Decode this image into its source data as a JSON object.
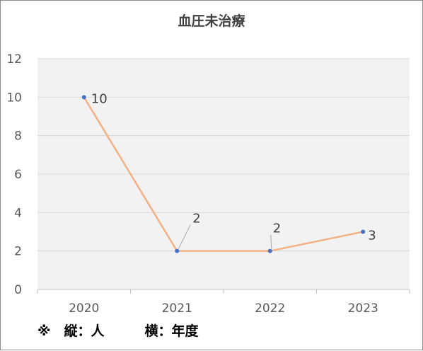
{
  "chart_data": {
    "type": "line",
    "title": "血圧未治療",
    "categories": [
      "2020",
      "2021",
      "2022",
      "2023"
    ],
    "series": [
      {
        "values": [
          10,
          2,
          2,
          3
        ]
      }
    ],
    "data_labels": [
      "10",
      "2",
      "2",
      "3"
    ],
    "ylim": [
      0,
      12
    ],
    "yticks": [
      "0",
      "2",
      "4",
      "6",
      "8",
      "10",
      "12"
    ],
    "xlabel": "",
    "ylabel": "",
    "grid": true,
    "legend": "none",
    "colors": {
      "line": "#f4b183",
      "marker": "#4472c4",
      "plot_bg": "#f2f2f2",
      "grid": "#d9d9d9"
    }
  },
  "note": "※　縦：人　　　横：年度"
}
